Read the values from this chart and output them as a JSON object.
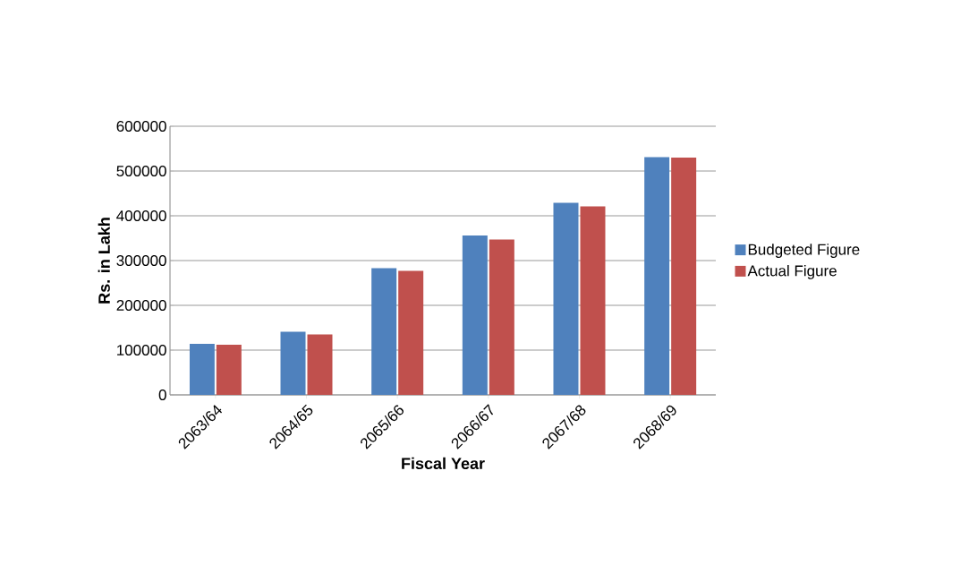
{
  "chart_data": {
    "type": "bar",
    "xlabel": "Fiscal Year",
    "ylabel": "Rs. in Lakh",
    "categories": [
      "2063/64",
      "2064/65",
      "2065/66",
      "2066/67",
      "2067/68",
      "2068/69"
    ],
    "series": [
      {
        "name": "Budgeted Figure",
        "color": "#4f81bd",
        "values": [
          114000,
          141000,
          283000,
          356000,
          429000,
          531000
        ]
      },
      {
        "name": "Actual Figure",
        "color": "#c0504d",
        "values": [
          112000,
          135000,
          277000,
          347000,
          421000,
          530000
        ]
      }
    ],
    "ylim": [
      0,
      600000
    ],
    "yticks": [
      0,
      100000,
      200000,
      300000,
      400000,
      500000,
      600000
    ],
    "grid": "y",
    "legend": "right"
  }
}
